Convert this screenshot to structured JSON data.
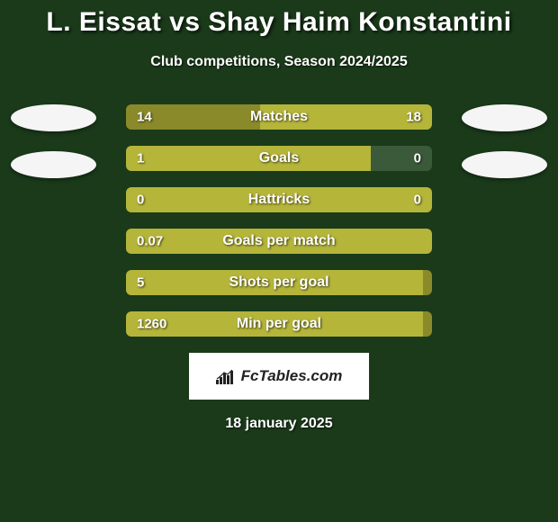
{
  "title": "L. Eissat vs Shay Haim Konstantini",
  "subtitle": "Club competitions, Season 2024/2025",
  "date": "18 january 2025",
  "logo_text": "FcTables.com",
  "colors": {
    "background": "#1a3a1a",
    "bar_olive_dark": "#8a8a2a",
    "bar_olive_light": "#b5b53a",
    "bar_empty": "#3a5a3a",
    "avatar": "#f5f5f5",
    "text": "#ffffff",
    "logo_bg": "#ffffff",
    "logo_text": "#222222"
  },
  "stats": [
    {
      "label": "Matches",
      "left_value": "14",
      "right_value": "18",
      "left_pct": 43.75,
      "left_color": "#8a8a2a",
      "right_color": "#b5b53a"
    },
    {
      "label": "Goals",
      "left_value": "1",
      "right_value": "0",
      "left_pct": 80,
      "left_color": "#b5b53a",
      "right_color": "#3a5a3a"
    },
    {
      "label": "Hattricks",
      "left_value": "0",
      "right_value": "0",
      "left_pct": 100,
      "left_color": "#b5b53a",
      "right_color": "#b5b53a"
    },
    {
      "label": "Goals per match",
      "left_value": "0.07",
      "right_value": "",
      "left_pct": 100,
      "left_color": "#b5b53a",
      "right_color": "#b5b53a"
    },
    {
      "label": "Shots per goal",
      "left_value": "5",
      "right_value": "",
      "left_pct": 97,
      "left_color": "#b5b53a",
      "right_color": "#8a8a2a"
    },
    {
      "label": "Min per goal",
      "left_value": "1260",
      "right_value": "",
      "left_pct": 97,
      "left_color": "#b5b53a",
      "right_color": "#8a8a2a"
    }
  ]
}
